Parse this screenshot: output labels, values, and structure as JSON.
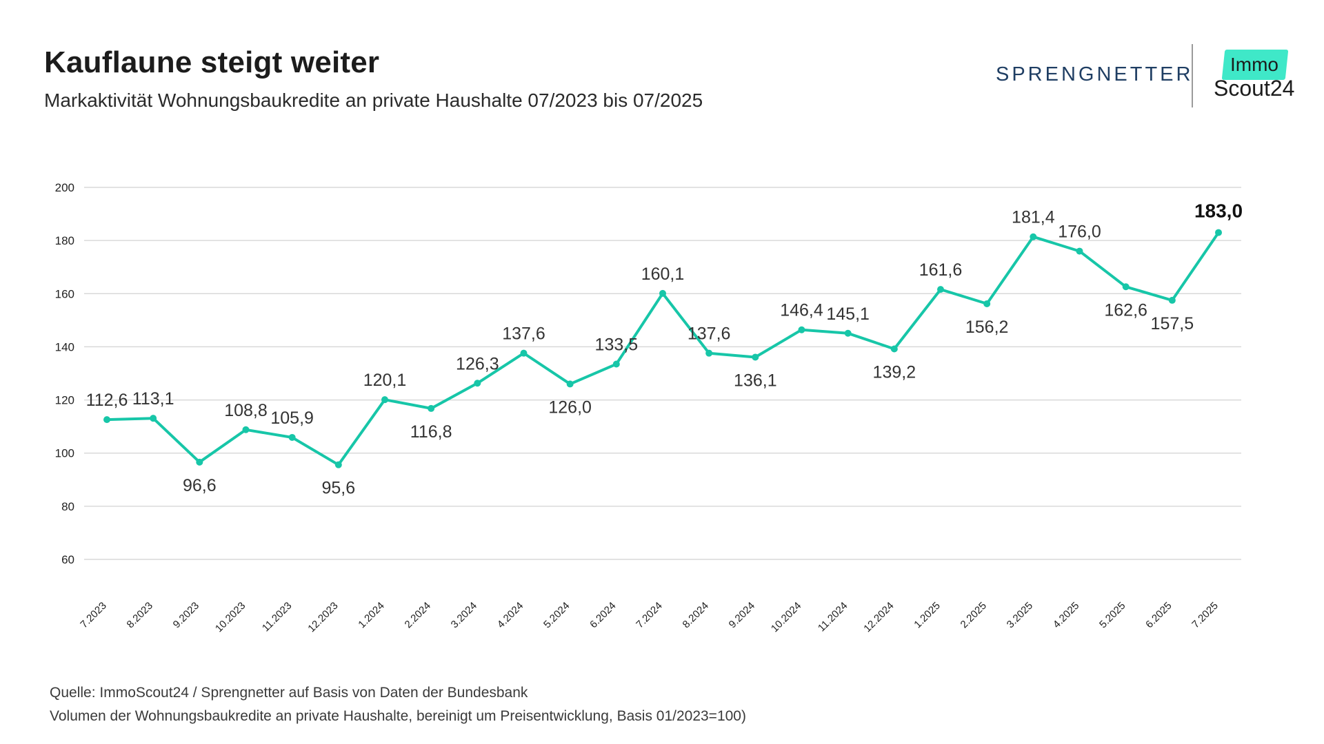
{
  "header": {
    "title": "Kauflaune steigt weiter",
    "subtitle": "Markaktivität Wohnungsbaukredite an private Haushalte 07/2023 bis 07/2025"
  },
  "logos": {
    "sprengnetter": "SPRENGNETTER",
    "immo": "Immo",
    "scout": "Scout24"
  },
  "footer": {
    "source": "Quelle: ImmoScout24 / Sprengnetter auf Basis von Daten der Bundesbank",
    "note": "Volumen der Wohnungsbaukredite an private Haushalte, bereinigt um Preisentwicklung, Basis 01/2023=100)"
  },
  "colors": {
    "line": "#17c6a8",
    "grid": "#d9d9d9",
    "brand_mint": "#3fe8c8",
    "brand_navy": "#1f3e63"
  },
  "chart_data": {
    "type": "line",
    "categories": [
      "7.2023",
      "8.2023",
      "9.2023",
      "10.2023",
      "11.2023",
      "12.2023",
      "1.2024",
      "2.2024",
      "3.2024",
      "4.2024",
      "5.2024",
      "6.2024",
      "7.2024",
      "8.2024",
      "9.2024",
      "10.2024",
      "11.2024",
      "12.2024",
      "1.2025",
      "2.2025",
      "3.2025",
      "4.2025",
      "5.2025",
      "6.2025",
      "7.2025"
    ],
    "values": [
      112.6,
      113.1,
      96.6,
      108.8,
      105.9,
      95.6,
      120.1,
      116.8,
      126.3,
      137.6,
      126.0,
      133.5,
      160.1,
      137.6,
      136.1,
      146.4,
      145.1,
      139.2,
      161.6,
      156.2,
      181.4,
      176.0,
      162.6,
      157.5,
      183.0
    ],
    "labels": [
      "112,6",
      "113,1",
      "96,6",
      "108,8",
      "105,9",
      "95,6",
      "120,1",
      "116,8",
      "126,3",
      "137,6",
      "126,0",
      "133,5",
      "160,1",
      "137,6",
      "136,1",
      "146,4",
      "145,1",
      "139,2",
      "161,6",
      "156,2",
      "181,4",
      "176,0",
      "162,6",
      "157,5",
      "183,0"
    ],
    "label_position": [
      "above",
      "above",
      "below",
      "above",
      "above",
      "below",
      "above",
      "below",
      "above",
      "above",
      "below",
      "above",
      "above",
      "above",
      "below",
      "above",
      "above",
      "below",
      "above",
      "below",
      "above",
      "above",
      "below",
      "below",
      "above"
    ],
    "highlight_last": true,
    "yticks": [
      60,
      80,
      100,
      120,
      140,
      160,
      180,
      200
    ],
    "ylim": [
      60,
      200
    ],
    "grid": true,
    "legend": "none"
  }
}
